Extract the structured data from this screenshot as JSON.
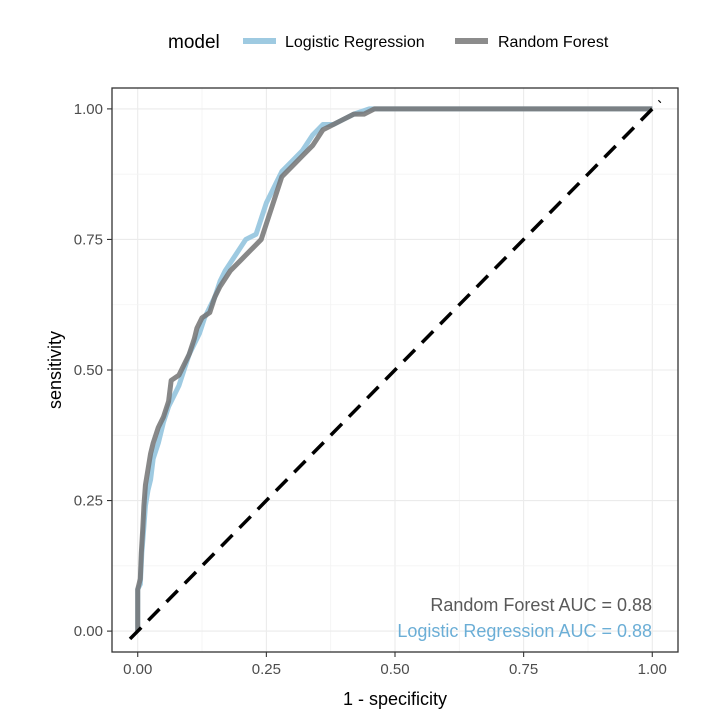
{
  "chart_data": {
    "type": "line",
    "xlabel": "1 - specificity",
    "ylabel": "sensitivity",
    "xlim": [
      -0.05,
      1.05
    ],
    "ylim": [
      -0.04,
      1.04
    ],
    "x_ticks": [
      0,
      0.25,
      0.5,
      0.75,
      1
    ],
    "y_ticks": [
      0,
      0.25,
      0.5,
      0.75,
      1
    ],
    "x_tick_labels": [
      "0.00",
      "0.25",
      "0.50",
      "0.75",
      "1.00"
    ],
    "y_tick_labels": [
      "0.00",
      "0.25",
      "0.50",
      "0.75",
      "1.00"
    ],
    "grid": true,
    "legend": {
      "title": "model",
      "position": "top",
      "entries": [
        "Logistic Regression",
        "Random Forest"
      ]
    },
    "series": [
      {
        "name": "Logistic Regression",
        "color": "#9ecae1",
        "points": [
          [
            0,
            0
          ],
          [
            0,
            0.08
          ],
          [
            0.005,
            0.09
          ],
          [
            0.008,
            0.15
          ],
          [
            0.012,
            0.2
          ],
          [
            0.015,
            0.24
          ],
          [
            0.02,
            0.27
          ],
          [
            0.025,
            0.29
          ],
          [
            0.03,
            0.33
          ],
          [
            0.04,
            0.36
          ],
          [
            0.05,
            0.4
          ],
          [
            0.06,
            0.43
          ],
          [
            0.07,
            0.45
          ],
          [
            0.08,
            0.47
          ],
          [
            0.09,
            0.5
          ],
          [
            0.1,
            0.53
          ],
          [
            0.11,
            0.55
          ],
          [
            0.12,
            0.57
          ],
          [
            0.13,
            0.6
          ],
          [
            0.15,
            0.64
          ],
          [
            0.16,
            0.67
          ],
          [
            0.17,
            0.69
          ],
          [
            0.19,
            0.72
          ],
          [
            0.21,
            0.75
          ],
          [
            0.23,
            0.76
          ],
          [
            0.24,
            0.79
          ],
          [
            0.25,
            0.82
          ],
          [
            0.26,
            0.84
          ],
          [
            0.27,
            0.86
          ],
          [
            0.28,
            0.88
          ],
          [
            0.3,
            0.9
          ],
          [
            0.32,
            0.92
          ],
          [
            0.34,
            0.95
          ],
          [
            0.36,
            0.97
          ],
          [
            0.38,
            0.97
          ],
          [
            0.4,
            0.98
          ],
          [
            0.42,
            0.99
          ],
          [
            0.45,
            1
          ],
          [
            0.46,
            1
          ],
          [
            1,
            1
          ]
        ]
      },
      {
        "name": "Random Forest",
        "color": "#737373",
        "points": [
          [
            0,
            0
          ],
          [
            0,
            0.08
          ],
          [
            0.005,
            0.1
          ],
          [
            0.007,
            0.15
          ],
          [
            0.01,
            0.2
          ],
          [
            0.012,
            0.24
          ],
          [
            0.015,
            0.28
          ],
          [
            0.02,
            0.31
          ],
          [
            0.025,
            0.34
          ],
          [
            0.03,
            0.36
          ],
          [
            0.04,
            0.39
          ],
          [
            0.05,
            0.41
          ],
          [
            0.06,
            0.44
          ],
          [
            0.065,
            0.48
          ],
          [
            0.08,
            0.49
          ],
          [
            0.09,
            0.51
          ],
          [
            0.1,
            0.53
          ],
          [
            0.11,
            0.56
          ],
          [
            0.115,
            0.58
          ],
          [
            0.125,
            0.6
          ],
          [
            0.14,
            0.61
          ],
          [
            0.15,
            0.64
          ],
          [
            0.16,
            0.66
          ],
          [
            0.18,
            0.69
          ],
          [
            0.2,
            0.71
          ],
          [
            0.22,
            0.73
          ],
          [
            0.24,
            0.75
          ],
          [
            0.25,
            0.78
          ],
          [
            0.26,
            0.81
          ],
          [
            0.27,
            0.84
          ],
          [
            0.28,
            0.87
          ],
          [
            0.3,
            0.89
          ],
          [
            0.32,
            0.91
          ],
          [
            0.34,
            0.93
          ],
          [
            0.36,
            0.96
          ],
          [
            0.38,
            0.97
          ],
          [
            0.4,
            0.98
          ],
          [
            0.42,
            0.99
          ],
          [
            0.44,
            0.99
          ],
          [
            0.46,
            1
          ],
          [
            1,
            1
          ]
        ]
      }
    ],
    "reference_line": {
      "from": [
        0,
        0
      ],
      "to": [
        1,
        1
      ],
      "style": "dashed",
      "color": "#000000"
    },
    "annotations": [
      {
        "text": "Random Forest AUC =  0.88",
        "color": "#595959"
      },
      {
        "text": "Logistic Regression AUC =  0.88",
        "color": "#6baed6"
      }
    ]
  }
}
